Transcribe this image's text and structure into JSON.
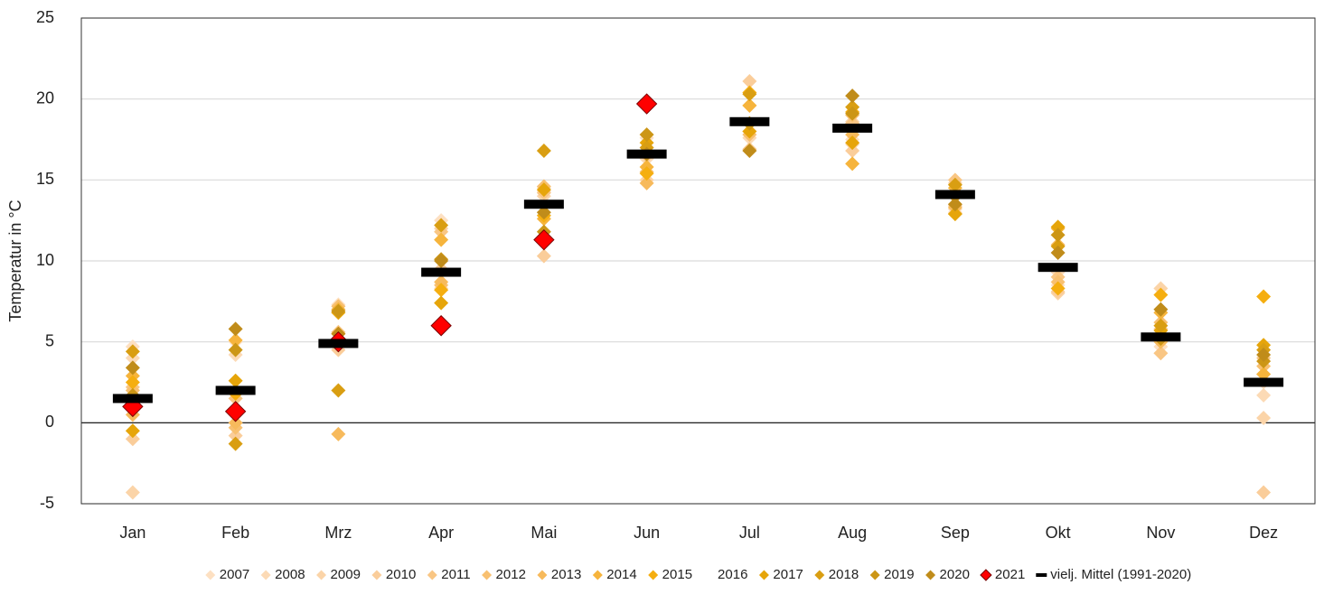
{
  "chart_data": {
    "type": "scatter",
    "y_label": "Temperatur in °C",
    "categories": [
      "Jan",
      "Feb",
      "Mrz",
      "Apr",
      "Mai",
      "Jun",
      "Jul",
      "Aug",
      "Sep",
      "Okt",
      "Nov",
      "Dez"
    ],
    "ylim": [
      -5,
      25
    ],
    "yticks": [
      -5,
      0,
      5,
      10,
      15,
      20,
      25
    ],
    "grid": true,
    "legend": "bottom",
    "series": [
      {
        "name": "2007",
        "color": "#fde0c2",
        "marker": "diamond",
        "values": [
          4.7,
          5.0,
          7.3,
          12.5,
          14.5,
          17.6,
          16.8,
          17.5,
          13.0,
          8.5,
          4.7,
          2.5
        ]
      },
      {
        "name": "2008",
        "color": "#fcdab5",
        "marker": "diamond",
        "values": [
          4.0,
          4.2,
          5.2,
          8.3,
          14.3,
          16.3,
          17.6,
          17.2,
          13.2,
          9.3,
          5.8,
          1.7
        ]
      },
      {
        "name": "2009",
        "color": "#fbd4a8",
        "marker": "diamond",
        "values": [
          -4.3,
          0.5,
          5.0,
          12.0,
          14.0,
          15.0,
          18.0,
          18.6,
          14.8,
          8.0,
          8.3,
          0.3
        ]
      },
      {
        "name": "2010",
        "color": "#facd9a",
        "marker": "diamond",
        "values": [
          -1.0,
          -0.8,
          4.5,
          9.5,
          10.3,
          16.8,
          21.1,
          16.8,
          13.4,
          8.1,
          5.8,
          -4.3
        ]
      },
      {
        "name": "2011",
        "color": "#f9c684",
        "marker": "diamond",
        "values": [
          2.2,
          1.5,
          5.6,
          11.8,
          14.2,
          16.5,
          16.9,
          18.5,
          15.0,
          9.0,
          4.3,
          4.0
        ]
      },
      {
        "name": "2012",
        "color": "#f8c070",
        "marker": "diamond",
        "values": [
          2.0,
          -0.3,
          7.2,
          8.5,
          14.6,
          15.5,
          17.8,
          19.0,
          14.0,
          8.7,
          6.2,
          3.5
        ]
      },
      {
        "name": "2013",
        "color": "#f7ba5c",
        "marker": "diamond",
        "values": [
          0.5,
          0.0,
          -0.7,
          8.7,
          11.5,
          14.8,
          19.6,
          17.8,
          13.3,
          11.0,
          5.0,
          3.0
        ]
      },
      {
        "name": "2014",
        "color": "#f6b43c",
        "marker": "diamond",
        "values": [
          2.9,
          5.1,
          7.0,
          11.3,
          12.6,
          15.8,
          19.6,
          16.0,
          14.5,
          12.0,
          6.8,
          3.0
        ]
      },
      {
        "name": "2015",
        "color": "#f5ae10",
        "marker": "diamond",
        "values": [
          2.5,
          1.8,
          5.5,
          8.2,
          12.8,
          15.4,
          20.4,
          19.2,
          12.9,
          8.3,
          7.9,
          7.8
        ]
      },
      {
        "name": "2016",
        "color": "#ffffff",
        "marker": "diamond",
        "values": [
          null,
          null,
          null,
          null,
          null,
          null,
          null,
          null,
          null,
          null,
          null,
          null
        ]
      },
      {
        "name": "2017",
        "color": "#e6a50a",
        "marker": "diamond",
        "values": [
          -0.5,
          2.6,
          6.8,
          7.4,
          14.4,
          17.3,
          18.0,
          17.3,
          12.9,
          12.1,
          5.7,
          4.8
        ]
      },
      {
        "name": "2018",
        "color": "#d99e12",
        "marker": "diamond",
        "values": [
          4.4,
          -1.3,
          2.0,
          12.2,
          16.8,
          17.0,
          20.3,
          19.5,
          14.7,
          10.9,
          6.0,
          4.5
        ]
      },
      {
        "name": "2019",
        "color": "#cc9616",
        "marker": "diamond",
        "values": [
          1.7,
          4.5,
          6.9,
          10.1,
          11.8,
          17.8,
          18.5,
          19.1,
          14.0,
          11.6,
          5.2,
          3.8
        ]
      },
      {
        "name": "2020",
        "color": "#c08c1a",
        "marker": "diamond",
        "values": [
          3.4,
          5.8,
          5.5,
          10.0,
          13.0,
          16.6,
          16.8,
          20.2,
          13.5,
          10.5,
          7.0,
          4.2
        ]
      },
      {
        "name": "2021",
        "color": "#ff0000",
        "marker": "diamond-large",
        "values": [
          1.0,
          0.7,
          5.0,
          6.0,
          11.3,
          19.7,
          null,
          null,
          null,
          null,
          null,
          null
        ]
      },
      {
        "name": "vielj. Mittel (1991-2020)",
        "color": "#000000",
        "marker": "dash",
        "values": [
          1.5,
          2.0,
          4.9,
          9.3,
          13.5,
          16.6,
          18.6,
          18.2,
          14.1,
          9.6,
          5.3,
          2.5
        ]
      }
    ]
  }
}
